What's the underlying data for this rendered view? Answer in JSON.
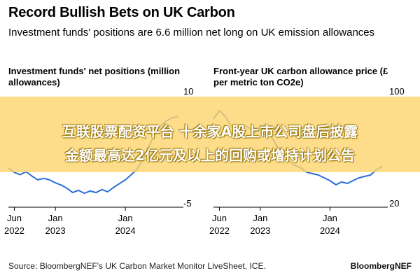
{
  "header": {
    "title": "Record Bullish Bets on UK Carbon",
    "subtitle": "Investment funds' positions are 6.6 million net long on UK emission allowances"
  },
  "overlay": {
    "line1": "互联股票配资平台 十余家A股上市公司盘后披露",
    "line2": "金额最高达2亿元及以上的回购或增持计划公告"
  },
  "footer": {
    "source": "Source: BloombergNEF's UK Carbon Market Monitor LiveSheet, ICE.",
    "brand": "BloombergNEF"
  },
  "colors": {
    "line": "#2b6fd6",
    "axis": "#000000",
    "banner": "#fcd46c"
  },
  "chart_data": [
    {
      "type": "line",
      "title": "Investment funds' net positions (million allowances)",
      "ylim": [
        -5,
        10
      ],
      "y_ticks": [
        10,
        -5
      ],
      "x_range": [
        "2022-05-01",
        "2024-10-15"
      ],
      "x_ticks": [
        {
          "date": "2022-06-01",
          "label1": "Jun",
          "label2": "2022"
        },
        {
          "date": "2023-01-01",
          "label1": "Jan",
          "label2": "2023"
        },
        {
          "date": "2024-01-01",
          "label1": "Jan",
          "label2": "2024"
        }
      ],
      "series": [
        {
          "points": [
            [
              "2022-05-01",
              -0.3
            ],
            [
              "2022-06-01",
              -0.9
            ],
            [
              "2022-07-01",
              -1.2
            ],
            [
              "2022-08-01",
              -0.8
            ],
            [
              "2022-09-01",
              -1.4
            ],
            [
              "2022-10-01",
              -1.9
            ],
            [
              "2022-11-01",
              -1.7
            ],
            [
              "2022-12-01",
              -1.9
            ],
            [
              "2023-01-01",
              -2.3
            ],
            [
              "2023-02-01",
              -2.6
            ],
            [
              "2023-03-01",
              -3.0
            ],
            [
              "2023-04-01",
              -3.6
            ],
            [
              "2023-05-01",
              -3.3
            ],
            [
              "2023-06-01",
              -3.7
            ],
            [
              "2023-07-01",
              -3.4
            ],
            [
              "2023-08-01",
              -3.6
            ],
            [
              "2023-09-01",
              -3.2
            ],
            [
              "2023-10-01",
              -3.5
            ],
            [
              "2023-11-01",
              -2.9
            ],
            [
              "2023-12-01",
              -2.4
            ],
            [
              "2024-01-01",
              -1.9
            ],
            [
              "2024-02-01",
              -1.2
            ],
            [
              "2024-03-01",
              -0.5
            ],
            [
              "2024-04-01",
              0.8
            ],
            [
              "2024-05-01",
              2.5
            ],
            [
              "2024-06-01",
              4.1
            ],
            [
              "2024-07-01",
              5.3
            ],
            [
              "2024-08-01",
              6.0
            ],
            [
              "2024-09-01",
              6.4
            ],
            [
              "2024-10-01",
              6.6
            ]
          ]
        }
      ]
    },
    {
      "type": "line",
      "title": "Front-year UK carbon allowance price (£ per metric ton CO2e)",
      "ylim": [
        20,
        100
      ],
      "y_ticks": [
        100,
        20
      ],
      "x_range": [
        "2022-05-01",
        "2024-10-15"
      ],
      "x_ticks": [
        {
          "date": "2022-06-01",
          "label1": "Jun",
          "label2": "2022"
        },
        {
          "date": "2023-01-01",
          "label1": "Jan",
          "label2": "2023"
        },
        {
          "date": "2024-01-01",
          "label1": "Jan",
          "label2": "2024"
        }
      ],
      "series": [
        {
          "points": [
            [
              "2022-05-01",
              80
            ],
            [
              "2022-06-01",
              86
            ],
            [
              "2022-07-01",
              82
            ],
            [
              "2022-08-01",
              75
            ],
            [
              "2022-09-01",
              72
            ],
            [
              "2022-10-01",
              76
            ],
            [
              "2022-11-01",
              74
            ],
            [
              "2022-12-01",
              70
            ],
            [
              "2023-01-01",
              74
            ],
            [
              "2023-02-01",
              73
            ],
            [
              "2023-03-01",
              67
            ],
            [
              "2023-04-01",
              60
            ],
            [
              "2023-05-01",
              57
            ],
            [
              "2023-06-01",
              50
            ],
            [
              "2023-07-01",
              47
            ],
            [
              "2023-08-01",
              45
            ],
            [
              "2023-09-01",
              42
            ],
            [
              "2023-10-01",
              41
            ],
            [
              "2023-11-01",
              40
            ],
            [
              "2023-12-01",
              38
            ],
            [
              "2024-01-01",
              36
            ],
            [
              "2024-02-01",
              33
            ],
            [
              "2024-03-01",
              35
            ],
            [
              "2024-04-01",
              34
            ],
            [
              "2024-05-01",
              36
            ],
            [
              "2024-06-01",
              38
            ],
            [
              "2024-07-01",
              39
            ],
            [
              "2024-08-01",
              40
            ],
            [
              "2024-09-01",
              44
            ],
            [
              "2024-10-01",
              46
            ]
          ]
        }
      ]
    }
  ]
}
